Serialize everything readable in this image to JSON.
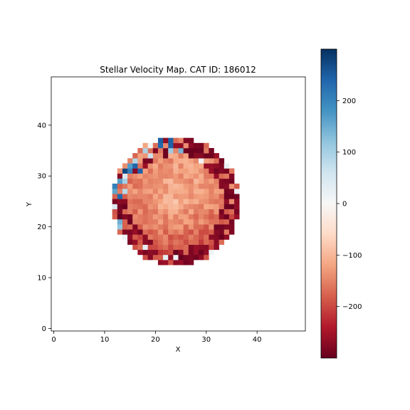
{
  "chart_data": {
    "type": "heatmap",
    "title": "Stellar Velocity Map. CAT ID: 186012",
    "xlabel": "X",
    "ylabel": "Y",
    "xlim": [
      -0.5,
      49.5
    ],
    "ylim": [
      -0.5,
      49.5
    ],
    "x_ticks": [
      "0",
      "10",
      "20",
      "30",
      "40"
    ],
    "y_ticks": [
      "0",
      "10",
      "20",
      "30",
      "40"
    ],
    "colormap": "RdBu (reversed: red = negative, blue = positive)",
    "colorbar": {
      "vmin": -300,
      "vmax": 300,
      "ticks": [
        "−200",
        "−100",
        "0",
        "100",
        "200"
      ]
    },
    "grid": false,
    "description_of_field": "Circular map of line-of-sight stellar velocities (km/s) centred near (24, 25) with radius ~12.5 px; mostly negative (red) values, noisier blue pixels at the upper-left edge.",
    "data_encoding": "value = velocity; NaN (white) outside the circular footprint"
  }
}
